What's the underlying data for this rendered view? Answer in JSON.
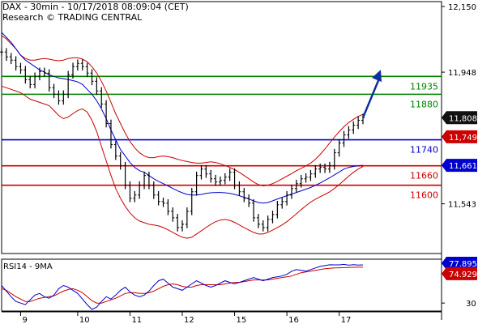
{
  "header": {
    "line1": "DAX - 30min - 10/17/2018 08:09:04 (CET)",
    "line2": "Research © TRADING CENTRAL"
  },
  "colors": {
    "price": "#000000",
    "resistance": "#008000",
    "pivot": "#0000cc",
    "support": "#cc0000",
    "bollinger": "#cc0000",
    "moving_average": "#0000cc",
    "projection_arrow": "#0b2fa0",
    "current_price_badge": "#111111",
    "rsi": "#0000cc",
    "rsi_ma": "#cc0000"
  },
  "chart_data": [
    {
      "type": "line",
      "panel": "price",
      "title": "",
      "y_ticks": [
        "12,150",
        "11,948",
        "11,543"
      ],
      "ylim": [
        11390,
        12165
      ],
      "x_ticks": [
        "9",
        "10",
        "11",
        "12",
        "15",
        "16",
        "17"
      ],
      "levels": [
        {
          "label": "11935",
          "value": 11935,
          "color": "#008000"
        },
        {
          "label": "11880",
          "value": 11880,
          "color": "#008000"
        },
        {
          "label": "11740",
          "value": 11740,
          "color": "#0000cc"
        },
        {
          "label": "11660",
          "value": 11660,
          "color": "#cc0000"
        },
        {
          "label": "11600",
          "value": 11600,
          "color": "#cc0000"
        }
      ],
      "badges": [
        {
          "label": "11,808",
          "value": 11808,
          "style": "dark"
        },
        {
          "label": "11,749",
          "value": 11749,
          "style": "red"
        },
        {
          "label": "11,661.4",
          "value": 11661.4,
          "style": "blue"
        }
      ],
      "price_series": [
        12010,
        11995,
        11985,
        11965,
        11955,
        11925,
        11910,
        11935,
        11950,
        11945,
        11900,
        11880,
        11860,
        11880,
        11940,
        11965,
        11975,
        11965,
        11945,
        11920,
        11890,
        11850,
        11790,
        11725,
        11690,
        11660,
        11600,
        11560,
        11570,
        11600,
        11630,
        11600,
        11570,
        11550,
        11545,
        11520,
        11500,
        11470,
        11480,
        11520,
        11580,
        11630,
        11650,
        11635,
        11620,
        11610,
        11615,
        11625,
        11640,
        11600,
        11580,
        11560,
        11545,
        11500,
        11480,
        11470,
        11495,
        11510,
        11540,
        11550,
        11570,
        11590,
        11605,
        11620,
        11625,
        11635,
        11650,
        11655,
        11650,
        11660,
        11700,
        11730,
        11755,
        11770,
        11785,
        11800,
        11808
      ],
      "ma_series": [
        12070,
        12055,
        12040,
        12020,
        12000,
        11985,
        11975,
        11965,
        11955,
        11948,
        11940,
        11935,
        11930,
        11928,
        11925,
        11922,
        11918,
        11910,
        11895,
        11880,
        11860,
        11835,
        11805,
        11770,
        11740,
        11710,
        11690,
        11670,
        11655,
        11645,
        11640,
        11630,
        11620,
        11612,
        11605,
        11598,
        11590,
        11583,
        11577,
        11572,
        11570,
        11570,
        11572,
        11575,
        11577,
        11578,
        11578,
        11577,
        11575,
        11572,
        11568,
        11563,
        11558,
        11552,
        11547,
        11545,
        11547,
        11552,
        11558,
        11563,
        11568,
        11573,
        11578,
        11583,
        11588,
        11593,
        11600,
        11607,
        11615,
        11623,
        11632,
        11641,
        11650,
        11655,
        11658,
        11660,
        11661.4
      ],
      "bb_upper": [
        12060,
        12050,
        12035,
        12020,
        12000,
        11990,
        11985,
        11985,
        11988,
        11990,
        11988,
        11985,
        11983,
        11985,
        11990,
        11992,
        11992,
        11988,
        11980,
        11965,
        11945,
        11920,
        11890,
        11855,
        11820,
        11790,
        11760,
        11735,
        11715,
        11700,
        11690,
        11685,
        11685,
        11688,
        11690,
        11688,
        11685,
        11680,
        11676,
        11673,
        11670,
        11668,
        11668,
        11670,
        11672,
        11670,
        11666,
        11661,
        11655,
        11648,
        11640,
        11630,
        11620,
        11610,
        11602,
        11598,
        11600,
        11605,
        11612,
        11620,
        11628,
        11636,
        11645,
        11652,
        11660,
        11668,
        11680,
        11695,
        11712,
        11730,
        11748,
        11765,
        11780,
        11793,
        11803,
        11812,
        11818
      ],
      "bb_lower": [
        11905,
        11900,
        11895,
        11890,
        11885,
        11875,
        11865,
        11860,
        11855,
        11850,
        11845,
        11830,
        11815,
        11805,
        11810,
        11820,
        11830,
        11835,
        11825,
        11800,
        11765,
        11720,
        11675,
        11630,
        11590,
        11560,
        11535,
        11515,
        11500,
        11490,
        11485,
        11480,
        11478,
        11475,
        11470,
        11463,
        11455,
        11447,
        11440,
        11437,
        11440,
        11450,
        11460,
        11470,
        11480,
        11488,
        11493,
        11495,
        11492,
        11486,
        11478,
        11470,
        11462,
        11455,
        11450,
        11450,
        11455,
        11462,
        11470,
        11478,
        11488,
        11500,
        11512,
        11525,
        11537,
        11548,
        11557,
        11565,
        11572,
        11580,
        11590,
        11602,
        11615,
        11628,
        11640,
        11650,
        11658
      ],
      "projection": {
        "from": 11808,
        "to": 11948
      }
    },
    {
      "type": "line",
      "panel": "rsi",
      "title": "RSI14 - 9MA",
      "y_ticks": [
        "30"
      ],
      "ylim": [
        20,
        85
      ],
      "series": [
        {
          "name": "RSI14",
          "color": "#0000cc"
        },
        {
          "name": "9MA",
          "color": "#cc0000"
        }
      ],
      "rsi_series": [
        52,
        45,
        38,
        32,
        30,
        28,
        34,
        40,
        42,
        38,
        36,
        40,
        48,
        52,
        50,
        46,
        42,
        35,
        28,
        22,
        25,
        32,
        38,
        35,
        40,
        46,
        50,
        44,
        40,
        38,
        40,
        45,
        52,
        58,
        60,
        55,
        50,
        48,
        46,
        50,
        54,
        58,
        55,
        52,
        50,
        52,
        55,
        58,
        56,
        54,
        56,
        58,
        60,
        62,
        60,
        58,
        60,
        62,
        63,
        64,
        66,
        70,
        72,
        71,
        70,
        72,
        74,
        76,
        77,
        78,
        77.9,
        77.9,
        78.5,
        77.5,
        78.2,
        77.6,
        77.8954
      ],
      "rsi_ma_series": [
        48,
        46,
        42,
        38,
        35,
        32,
        32,
        34,
        36,
        37,
        38,
        39,
        42,
        45,
        47,
        48,
        46,
        43,
        38,
        33,
        30,
        30,
        32,
        34,
        36,
        39,
        42,
        43,
        43,
        42,
        42,
        43,
        45,
        48,
        51,
        53,
        54,
        53,
        51,
        50,
        50,
        52,
        53,
        53,
        53,
        53,
        53,
        54,
        55,
        56,
        56,
        57,
        58,
        59,
        59,
        59,
        59,
        60,
        61,
        62,
        63,
        64,
        66,
        68,
        69,
        70,
        71,
        72,
        73,
        73.5,
        74,
        74.2,
        74.4,
        74.6,
        74.8,
        74.9,
        74.9292
      ],
      "badges": [
        {
          "label": "77.8954",
          "value": 77.8954,
          "style": "blue"
        },
        {
          "label": "74.9292",
          "value": 74.9292,
          "style": "red"
        }
      ]
    }
  ]
}
